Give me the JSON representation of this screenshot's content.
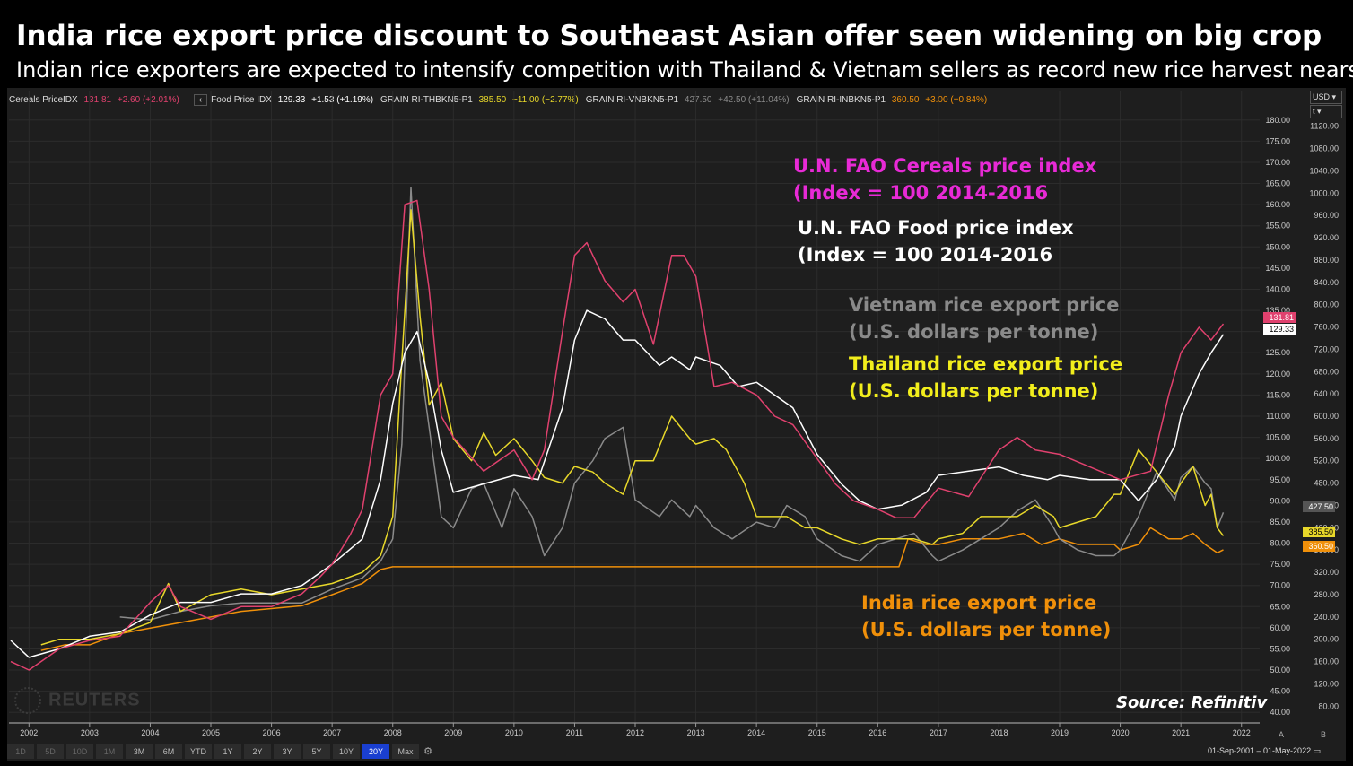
{
  "title": "India rice export price discount to Southeast Asian offer seen widening on big crop",
  "subtitle": "Indian rice exporters are expected to intensify competition with Thailand & Vietnam sellers as record new rice harvest nears",
  "legend": {
    "cereals": {
      "name": "Cereals PriceIDX",
      "value": "131.81",
      "change": "+2.60 (+2.01%)",
      "color": "#e0416e"
    },
    "back": "‹",
    "food": {
      "name": "Food Price IDX",
      "value": "129.33",
      "change": "+1.53 (+1.19%)",
      "color": "#ffffff"
    },
    "thai": {
      "name": "GRAIN RI-THBKN5-P1",
      "value": "385.50",
      "change": "−11.00 (−2.77%)",
      "color": "#e8d82a"
    },
    "viet": {
      "name": "GRAIN RI-VNBKN5-P1",
      "value": "427.50",
      "change": "+42.50 (+11.04%)",
      "color": "#8a8a8a"
    },
    "india": {
      "name": "GRAIN RI-INBKN5-P1",
      "value": "360.50",
      "change": "+3.00 (+0.84%)",
      "color": "#f0900a"
    }
  },
  "currency": "USD",
  "scale_mode": "t",
  "annotations": {
    "cereals_l1": "U.N. FAO Cereals price index",
    "cereals_l2": "(Index = 100 2014-2016",
    "food_l1": "U.N. FAO Food price index",
    "food_l2": "(Index = 100 2014-2016",
    "viet_l1": "Vietnam rice export price",
    "viet_l2": "(U.S. dollars per tonne)",
    "thai_l1": "Thailand rice export price",
    "thai_l2": "(U.S. dollars per tonne)",
    "india_l1": "India rice export price",
    "india_l2": "(U.S. dollars per tonne)"
  },
  "colors": {
    "cereals": "#e0416e",
    "food": "#ffffff",
    "viet": "#8a8a8a",
    "thai": "#e8d82a",
    "india": "#f0900a",
    "cereals_label": "#e82ad6"
  },
  "source": "Source: Refinitiv",
  "watermark": "REUTERS",
  "range_buttons": [
    "1D",
    "5D",
    "10D",
    "1M",
    "3M",
    "6M",
    "YTD",
    "1Y",
    "2Y",
    "3Y",
    "5Y",
    "10Y",
    "20Y",
    "Max"
  ],
  "active_range": "20Y",
  "ab_buttons": [
    "A",
    "B"
  ],
  "date_range": "01-Sep-2001  –  01-May-2022",
  "chart_data": {
    "type": "line",
    "title": "India rice export price discount to Southeast Asian offer seen widening on big crop",
    "subtitle": "Indian rice exporters are expected to intensify competition with Thailand & Vietnam sellers as record new rice harvest nears",
    "x_ticks": [
      "2002",
      "2003",
      "2004",
      "2005",
      "2006",
      "2007",
      "2008",
      "2009",
      "2010",
      "2011",
      "2012",
      "2013",
      "2014",
      "2015",
      "2016",
      "2017",
      "2018",
      "2019",
      "2020",
      "2021",
      "2022"
    ],
    "x_range": [
      2001.67,
      2022.3
    ],
    "y_left": {
      "range": [
        37.5,
        182.5
      ],
      "ticks": [
        "40.00",
        "45.00",
        "50.00",
        "55.00",
        "60.00",
        "65.00",
        "70.00",
        "75.00",
        "80.00",
        "85.00",
        "90.00",
        "95.00",
        "100.00",
        "105.00",
        "110.00",
        "115.00",
        "120.00",
        "125.00",
        "130.00",
        "135.00",
        "140.00",
        "145.00",
        "150.00",
        "155.00",
        "160.00",
        "165.00",
        "170.00",
        "175.00",
        "180.00"
      ]
    },
    "y_right": {
      "range": [
        50,
        1150
      ],
      "unit": "U.S. dollars per tonne",
      "ticks": [
        "80.00",
        "120.00",
        "160.00",
        "200.00",
        "240.00",
        "280.00",
        "320.00",
        "360.00",
        "400.00",
        "440.00",
        "480.00",
        "520.00",
        "560.00",
        "600.00",
        "640.00",
        "680.00",
        "720.00",
        "760.00",
        "800.00",
        "840.00",
        "880.00",
        "920.00",
        "960.00",
        "1000.00",
        "1040.00",
        "1080.00",
        "1120.00"
      ]
    },
    "last_value_tags": [
      {
        "series": "cereals",
        "value": "131.81"
      },
      {
        "series": "food",
        "value": "129.33"
      },
      {
        "series": "viet",
        "value": "427.50"
      },
      {
        "series": "thai",
        "value": "385.50"
      },
      {
        "series": "india",
        "value": "360.50"
      }
    ],
    "series": [
      {
        "key": "cereals",
        "axis": "left",
        "name": "Cereals PriceIDX",
        "x": [
          2001.7,
          2002.0,
          2002.5,
          2003.0,
          2003.5,
          2004.0,
          2004.3,
          2004.5,
          2005.0,
          2005.5,
          2006.0,
          2006.5,
          2006.8,
          2007.0,
          2007.3,
          2007.5,
          2007.8,
          2008.0,
          2008.2,
          2008.4,
          2008.6,
          2008.8,
          2009.0,
          2009.5,
          2010.0,
          2010.3,
          2010.5,
          2010.8,
          2011.0,
          2011.2,
          2011.5,
          2011.8,
          2012.0,
          2012.3,
          2012.6,
          2012.8,
          2013.0,
          2013.3,
          2013.6,
          2014.0,
          2014.3,
          2014.6,
          2015.0,
          2015.3,
          2015.6,
          2016.0,
          2016.3,
          2016.6,
          2017.0,
          2017.5,
          2018.0,
          2018.3,
          2018.6,
          2019.0,
          2019.5,
          2020.0,
          2020.5,
          2020.8,
          2021.0,
          2021.3,
          2021.5,
          2021.7
        ],
        "y": [
          52,
          50,
          55,
          57,
          58,
          66,
          70,
          65,
          62,
          65,
          65,
          68,
          72,
          75,
          82,
          88,
          115,
          120,
          160,
          161,
          140,
          110,
          105,
          97,
          102,
          95,
          102,
          130,
          148,
          151,
          142,
          137,
          140,
          127,
          148,
          148,
          143,
          117,
          118,
          115,
          110,
          108,
          100,
          94,
          90,
          88,
          86,
          86,
          93,
          91,
          102,
          105,
          102,
          101,
          98,
          95,
          97,
          115,
          125,
          131,
          128,
          131.81
        ]
      },
      {
        "key": "food",
        "axis": "left",
        "name": "Food Price IDX",
        "x": [
          2001.7,
          2002.0,
          2002.5,
          2003.0,
          2003.5,
          2004.0,
          2004.5,
          2005.0,
          2005.5,
          2006.0,
          2006.5,
          2007.0,
          2007.5,
          2007.8,
          2008.0,
          2008.2,
          2008.4,
          2008.6,
          2008.8,
          2009.0,
          2009.5,
          2010.0,
          2010.4,
          2010.8,
          2011.0,
          2011.2,
          2011.5,
          2011.8,
          2012.0,
          2012.4,
          2012.6,
          2012.9,
          2013.0,
          2013.4,
          2013.7,
          2014.0,
          2014.3,
          2014.6,
          2015.0,
          2015.4,
          2015.7,
          2016.0,
          2016.4,
          2016.8,
          2017.0,
          2017.5,
          2018.0,
          2018.4,
          2018.8,
          2019.0,
          2019.5,
          2020.0,
          2020.3,
          2020.6,
          2020.9,
          2021.0,
          2021.3,
          2021.5,
          2021.7
        ],
        "y": [
          57,
          53,
          55,
          58,
          59,
          63,
          66,
          66,
          68,
          68,
          70,
          75,
          81,
          95,
          113,
          125,
          130,
          118,
          102,
          92,
          94,
          96,
          95,
          112,
          128,
          135,
          133,
          128,
          128,
          122,
          124,
          121,
          124,
          122,
          117,
          118,
          115,
          112,
          101,
          94,
          90,
          88,
          89,
          92,
          96,
          97,
          98,
          96,
          95,
          96,
          95,
          95,
          90,
          95,
          103,
          110,
          120,
          125,
          129.33
        ]
      },
      {
        "key": "viet",
        "axis": "right",
        "name": "GRAIN RI-VNBKN5-P1",
        "x": [
          2003.5,
          2004.0,
          2004.5,
          2005.0,
          2005.5,
          2006.0,
          2006.5,
          2007.0,
          2007.5,
          2007.8,
          2008.0,
          2008.15,
          2008.3,
          2008.45,
          2008.6,
          2008.8,
          2009.0,
          2009.3,
          2009.5,
          2009.8,
          2010.0,
          2010.3,
          2010.5,
          2010.8,
          2011.0,
          2011.3,
          2011.5,
          2011.8,
          2012.0,
          2012.4,
          2012.6,
          2012.9,
          2013.0,
          2013.3,
          2013.6,
          2014.0,
          2014.3,
          2014.5,
          2014.8,
          2015.0,
          2015.4,
          2015.7,
          2016.0,
          2016.3,
          2016.6,
          2016.9,
          2017.0,
          2017.4,
          2017.7,
          2018.0,
          2018.3,
          2018.6,
          2018.9,
          2019.0,
          2019.3,
          2019.6,
          2019.9,
          2020.0,
          2020.3,
          2020.6,
          2020.9,
          2021.0,
          2021.2,
          2021.4,
          2021.5,
          2021.6,
          2021.7
        ],
        "y": [
          240,
          235,
          250,
          260,
          265,
          265,
          265,
          290,
          310,
          340,
          380,
          550,
          1010,
          700,
          580,
          420,
          400,
          470,
          480,
          400,
          470,
          420,
          350,
          400,
          480,
          520,
          560,
          580,
          450,
          420,
          450,
          420,
          440,
          400,
          380,
          410,
          400,
          440,
          420,
          380,
          350,
          340,
          370,
          380,
          390,
          350,
          340,
          360,
          380,
          400,
          430,
          450,
          400,
          380,
          360,
          350,
          350,
          360,
          420,
          500,
          450,
          490,
          510,
          480,
          470,
          400,
          427.5
        ]
      },
      {
        "key": "thai",
        "axis": "right",
        "name": "GRAIN RI-THBKN5-P1",
        "x": [
          2002.2,
          2002.5,
          2003.0,
          2003.5,
          2004.0,
          2004.3,
          2004.5,
          2005.0,
          2005.5,
          2006.0,
          2006.5,
          2007.0,
          2007.5,
          2007.8,
          2008.0,
          2008.15,
          2008.3,
          2008.45,
          2008.6,
          2008.8,
          2009.0,
          2009.3,
          2009.5,
          2009.7,
          2010.0,
          2010.3,
          2010.5,
          2010.8,
          2011.0,
          2011.3,
          2011.5,
          2011.8,
          2012.0,
          2012.3,
          2012.6,
          2012.9,
          2013.0,
          2013.3,
          2013.5,
          2013.8,
          2014.0,
          2014.5,
          2014.8,
          2015.0,
          2015.4,
          2015.7,
          2016.0,
          2016.3,
          2016.6,
          2016.9,
          2017.0,
          2017.4,
          2017.7,
          2018.0,
          2018.3,
          2018.6,
          2018.9,
          2019.0,
          2019.3,
          2019.6,
          2019.9,
          2020.0,
          2020.3,
          2020.6,
          2020.9,
          2021.0,
          2021.2,
          2021.4,
          2021.5,
          2021.6,
          2021.7
        ],
        "y": [
          190,
          200,
          200,
          210,
          230,
          300,
          250,
          280,
          290,
          280,
          290,
          300,
          320,
          350,
          420,
          700,
          970,
          780,
          620,
          660,
          560,
          520,
          570,
          530,
          560,
          520,
          490,
          480,
          510,
          500,
          480,
          460,
          520,
          520,
          600,
          560,
          550,
          560,
          540,
          480,
          420,
          420,
          400,
          400,
          380,
          370,
          380,
          380,
          380,
          370,
          380,
          390,
          420,
          420,
          420,
          440,
          420,
          400,
          410,
          420,
          460,
          460,
          540,
          500,
          460,
          480,
          510,
          440,
          460,
          400,
          385.5
        ]
      },
      {
        "key": "india",
        "axis": "right",
        "name": "GRAIN RI-INBKN5-P1",
        "x": [
          2002.2,
          2002.6,
          2003.0,
          2003.5,
          2004.0,
          2004.5,
          2005.0,
          2005.5,
          2006.0,
          2006.5,
          2007.0,
          2007.5,
          2007.8,
          2008.0,
          2008.5,
          2009.0,
          2010.0,
          2011.0,
          2012.0,
          2013.0,
          2014.0,
          2015.0,
          2016.0,
          2016.35,
          2016.5,
          2016.8,
          2017.0,
          2017.4,
          2017.8,
          2018.0,
          2018.4,
          2018.7,
          2019.0,
          2019.3,
          2019.6,
          2019.9,
          2020.0,
          2020.3,
          2020.5,
          2020.8,
          2021.0,
          2021.2,
          2021.4,
          2021.6,
          2021.7
        ],
        "y": [
          180,
          190,
          190,
          210,
          220,
          230,
          240,
          250,
          255,
          260,
          280,
          300,
          325,
          330,
          330,
          330,
          330,
          330,
          330,
          330,
          330,
          330,
          330,
          330,
          380,
          370,
          370,
          380,
          380,
          380,
          390,
          370,
          380,
          370,
          370,
          370,
          360,
          370,
          400,
          380,
          380,
          390,
          370,
          355,
          360.5
        ]
      }
    ]
  }
}
